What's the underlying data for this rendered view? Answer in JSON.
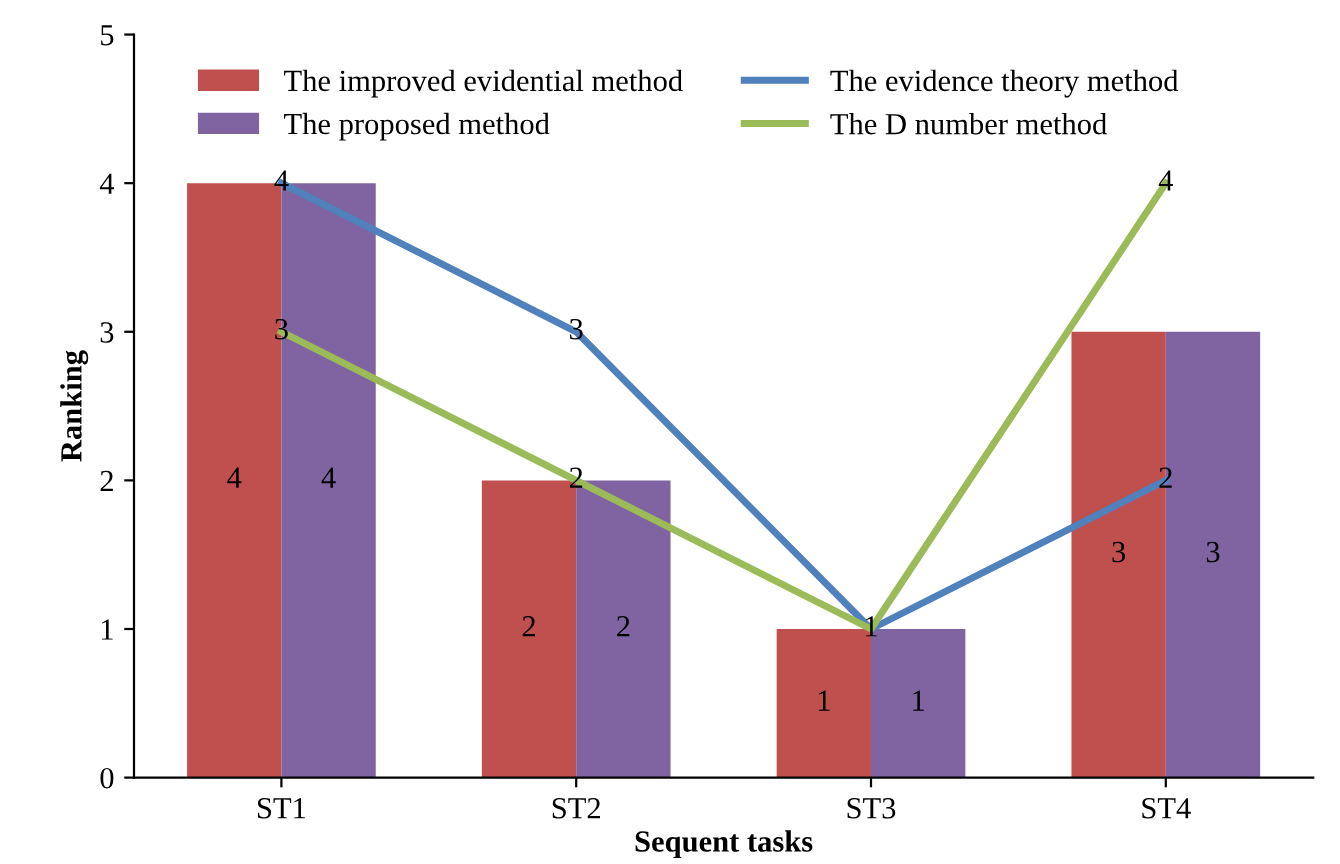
{
  "chart_data": {
    "type": "bar",
    "xlabel": "Sequent tasks",
    "ylabel": "Ranking",
    "categories": [
      "ST1",
      "ST2",
      "ST3",
      "ST4"
    ],
    "series": [
      {
        "name": "The improved evidential method",
        "color": "#c0504d",
        "values": [
          4,
          2,
          1,
          3
        ]
      },
      {
        "name": "The proposed method",
        "color": "#8064a2",
        "values": [
          4,
          2,
          1,
          3
        ]
      },
      {
        "name": "The evidence theory method",
        "type": "line",
        "color": "#4f81bd",
        "values": [
          4,
          3,
          1,
          2
        ]
      },
      {
        "name": "The D number method",
        "type": "line",
        "color": "#9bbb59",
        "values": [
          3,
          2,
          1,
          4
        ],
        "value_labels": [
          "3",
          "2",
          null,
          "4"
        ]
      }
    ],
    "ylim": [
      0,
      5
    ],
    "yticks": [
      0,
      1,
      2,
      3,
      4,
      5
    ],
    "grid": false,
    "legend": "top",
    "data_labels": true,
    "marker": "none",
    "line_style": "solid"
  }
}
